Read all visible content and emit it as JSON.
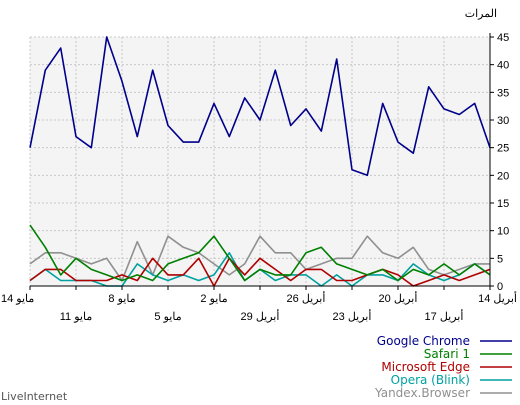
{
  "chart_data": {
    "type": "line",
    "ylabel": "المرات",
    "ylim": [
      0,
      45
    ],
    "yticks": [
      0,
      5,
      10,
      15,
      20,
      25,
      30,
      35,
      40,
      45
    ],
    "x_range": [
      "2025-04-14",
      "2025-05-14"
    ],
    "x_ticks_top": [
      {
        "date": "2025-04-14",
        "label": "14 أبريل"
      },
      {
        "date": "2025-04-20",
        "label": "20 أبريل"
      },
      {
        "date": "2025-04-26",
        "label": "26 أبريل"
      },
      {
        "date": "2025-05-02",
        "label": "2 مايو"
      },
      {
        "date": "2025-05-08",
        "label": "8 مايو"
      },
      {
        "date": "2025-05-14",
        "label": "14 مايو"
      }
    ],
    "x_ticks_bottom": [
      {
        "date": "2025-04-17",
        "label": "17 أبريل"
      },
      {
        "date": "2025-04-23",
        "label": "23 أبريل"
      },
      {
        "date": "2025-04-29",
        "label": "29 أبريل"
      },
      {
        "date": "2025-05-05",
        "label": "5 مايو"
      },
      {
        "date": "2025-05-11",
        "label": "11 مايو"
      }
    ],
    "grid": true,
    "legend_position": "bottom-right",
    "series": [
      {
        "name": "Google Chrome",
        "color": "#00008b",
        "values": [
          25,
          33,
          31,
          32,
          36,
          24,
          26,
          33,
          20,
          21,
          41,
          28,
          32,
          29,
          39,
          30,
          34,
          27,
          33,
          26,
          26,
          29,
          39,
          27,
          37,
          45,
          25,
          27,
          43,
          39,
          25
        ]
      },
      {
        "name": "Safari 1",
        "color": "#008000",
        "values": [
          2,
          4,
          2,
          4,
          2,
          3,
          1,
          3,
          2,
          3,
          4,
          7,
          6,
          2,
          2,
          3,
          1,
          5,
          9,
          6,
          5,
          4,
          1,
          2,
          1,
          2,
          3,
          5,
          2,
          7,
          11
        ]
      },
      {
        "name": "Microsoft Edge",
        "color": "#b00000",
        "values": [
          3,
          2,
          1,
          2,
          1,
          0,
          2,
          3,
          2,
          1,
          1,
          3,
          3,
          1,
          3,
          5,
          2,
          5,
          0,
          5,
          2,
          2,
          5,
          1,
          2,
          1,
          1,
          1,
          3,
          3,
          1
        ]
      },
      {
        "name": "Opera (Blink)",
        "color": "#00a0a0",
        "values": [
          2,
          4,
          2,
          1,
          2,
          4,
          1,
          2,
          2,
          0,
          2,
          0,
          2,
          2,
          1,
          3,
          1,
          6,
          2,
          1,
          2,
          1,
          2,
          4,
          0,
          0,
          1,
          1,
          1,
          3,
          1
        ]
      },
      {
        "name": "Yandex.Browser",
        "color": "#909090",
        "values": [
          4,
          4,
          3,
          2,
          3,
          7,
          5,
          6,
          9,
          5,
          5,
          4,
          3,
          6,
          6,
          9,
          4,
          2,
          4,
          6,
          7,
          9,
          2,
          8,
          1,
          5,
          4,
          5,
          6,
          6,
          4
        ]
      }
    ]
  },
  "footer": {
    "brand": "LiveInternet"
  }
}
